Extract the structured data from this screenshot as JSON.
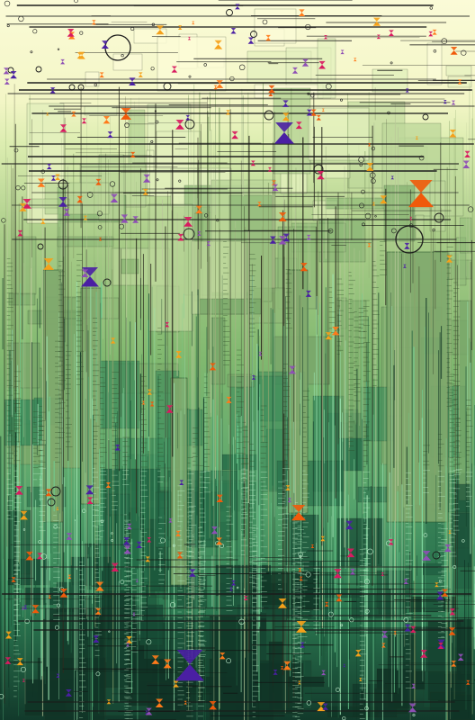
{
  "artwork": {
    "style": "generative-grid-abstract",
    "palette": {
      "band_colors": [
        "#fafad2",
        "#dfeeb3",
        "#aecd8c",
        "#8cbf72",
        "#5fae6e",
        "#2f7a52",
        "#1a4d38",
        "#0f2d22"
      ],
      "panel_tints": [
        "#fbfbd6",
        "#e3f0bd",
        "#bcd79a",
        "#8fb978",
        "#7aa86a",
        "#3c8a5a",
        "#256b48",
        "#184c36",
        "#103426"
      ],
      "triangle_colors": [
        "#f05a0a",
        "#4a1fa3",
        "#d81b60",
        "#f5a11a",
        "#8e4fb5",
        "#ff7a1a"
      ],
      "stroke_dark": "#1b1b1b",
      "grid_light": "#c8d6a8",
      "grid_mint": "#9be3b0"
    },
    "motifs": [
      "hourglass-triangle",
      "hollow-circle",
      "grid-line"
    ]
  }
}
